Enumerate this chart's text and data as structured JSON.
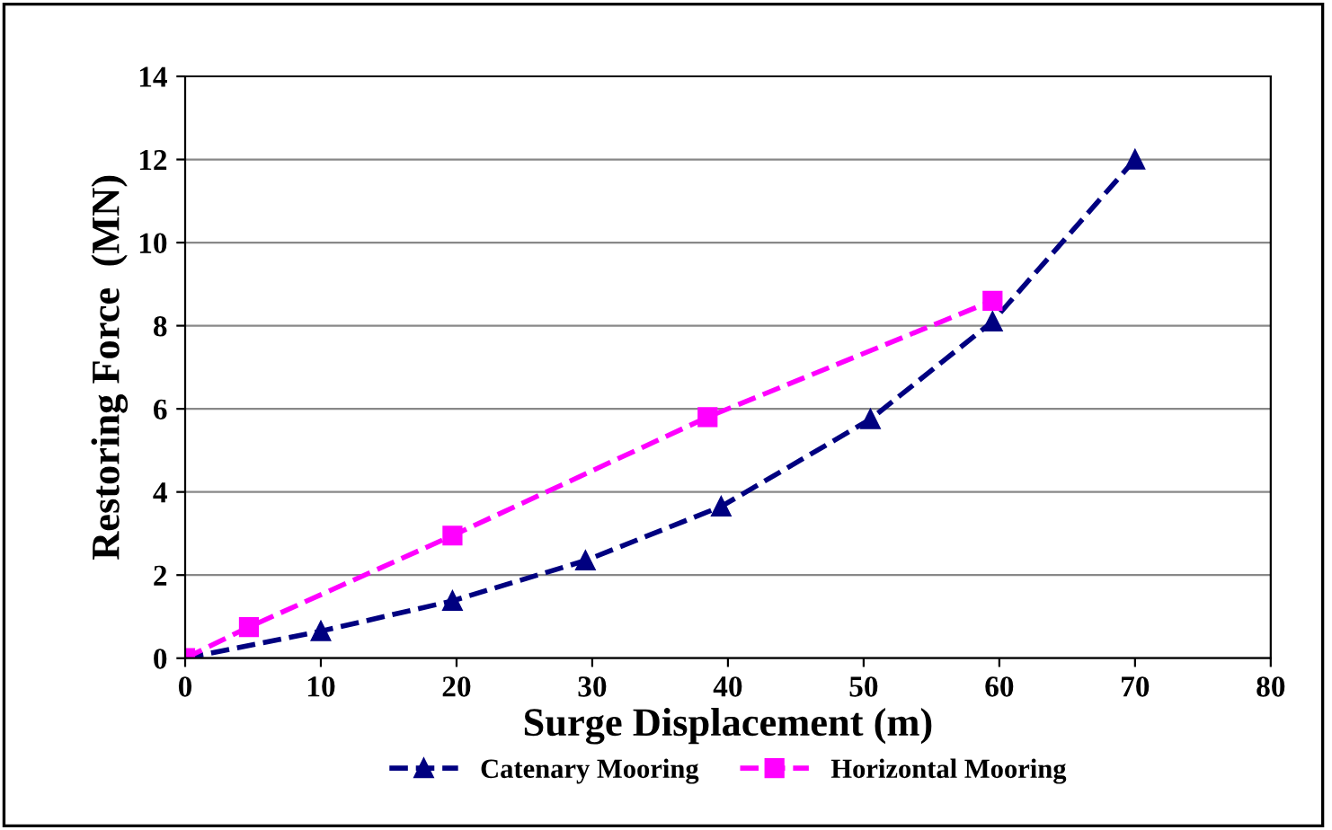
{
  "chart_data": {
    "type": "line",
    "xlabel": "Surge Displacement (m)",
    "ylabel": "Restoring Force  (MN)",
    "xlim": [
      0,
      80
    ],
    "xticks": [
      0,
      10,
      20,
      30,
      40,
      50,
      60,
      70,
      80
    ],
    "ylim": [
      0,
      14
    ],
    "yticks": [
      0,
      2,
      4,
      6,
      8,
      10,
      12,
      14
    ],
    "grid": "y",
    "legend": "bottom",
    "line_style": "dashed",
    "series": [
      {
        "name": "Catenary Mooring",
        "color": "#000080",
        "marker": "triangle",
        "x": [
          0,
          10,
          19.7,
          29.5,
          39.5,
          50.5,
          59.5,
          70
        ],
        "values": [
          0,
          0.65,
          1.38,
          2.35,
          3.65,
          5.75,
          8.1,
          12
        ]
      },
      {
        "name": "Horizontal Mooring",
        "color": "#ff00ff",
        "marker": "square",
        "x": [
          0,
          4.7,
          19.7,
          38.5,
          59.5
        ],
        "values": [
          0,
          0.75,
          2.95,
          5.8,
          8.6
        ]
      }
    ]
  }
}
